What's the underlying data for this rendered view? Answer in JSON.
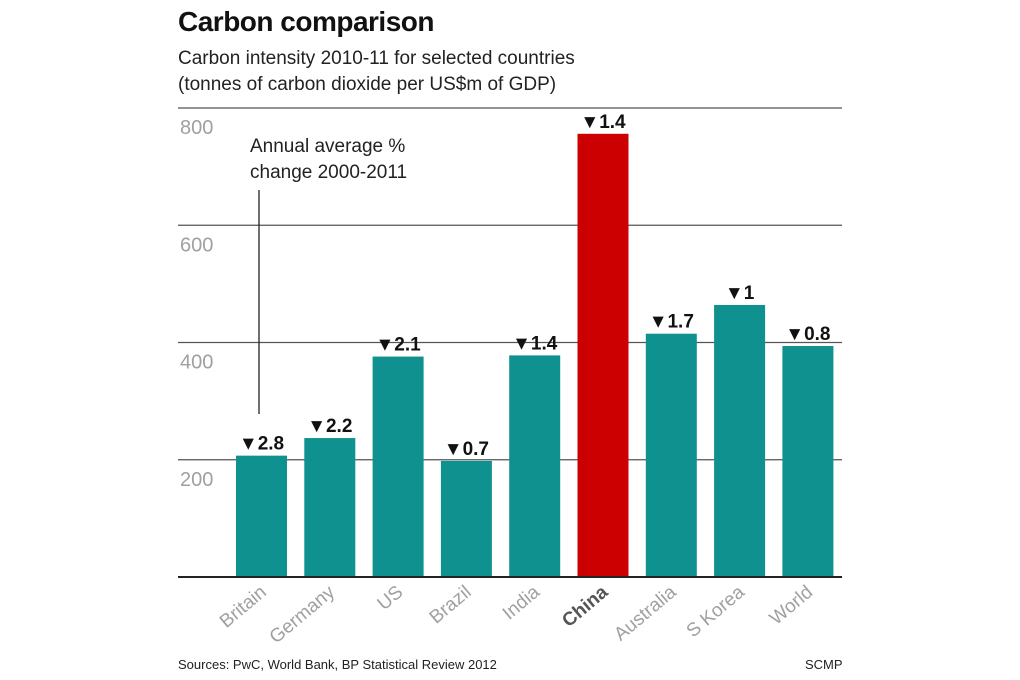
{
  "chart_data": {
    "type": "bar",
    "title": "Carbon comparison",
    "subtitle": [
      "Carbon intensity 2010-11 for selected countries",
      "(tonnes of carbon dioxide per US$m of GDP)"
    ],
    "categories": [
      "Britain",
      "Germany",
      "US",
      "Brazil",
      "India",
      "China",
      "Australia",
      "S Korea",
      "World"
    ],
    "values": [
      207,
      237,
      376,
      198,
      378,
      756,
      415,
      464,
      394
    ],
    "change_labels": [
      "▼2.8",
      "▼2.2",
      "▼2.1",
      "▼0.7",
      "▼1.4",
      "▼1.4",
      "▼1.7",
      "▼1",
      "▼0.8"
    ],
    "annotation": [
      "Annual average %",
      "change 2000-2011"
    ],
    "highlight": "China",
    "ylim": [
      0,
      800
    ],
    "yticks": [
      200,
      400,
      600,
      800
    ],
    "grid": true,
    "xlabel": "",
    "ylabel": "",
    "colors": {
      "bar": "#0e918f",
      "highlight": "#cc0000",
      "grid": "#555555",
      "axis": "#222222",
      "tick_label": "#a0a0a0",
      "highlight_label": "#555555"
    }
  },
  "source": "Sources: PwC, World Bank, BP Statistical Review 2012",
  "credit": "SCMP"
}
